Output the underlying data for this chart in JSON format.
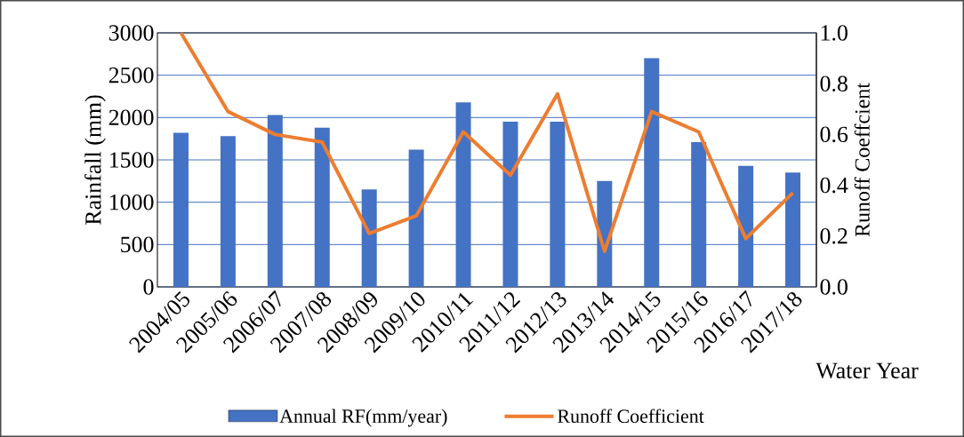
{
  "chart_data": {
    "type": "bar",
    "categories": [
      "2004/05",
      "2005/06",
      "2006/07",
      "2007/08",
      "2008/09",
      "2009/10",
      "2010/11",
      "2011/12",
      "2012/13",
      "2013/14",
      "2014/15",
      "2015/16",
      "2016/17",
      "2017/18"
    ],
    "series": [
      {
        "name": "Annual RF(mm/year)",
        "color": "#4472c4",
        "values": [
          1820,
          1780,
          2030,
          1880,
          1150,
          1620,
          2180,
          1950,
          1950,
          1250,
          2700,
          1710,
          1430,
          1350
        ]
      },
      {
        "name": "Runoff Coefficient",
        "type": "line",
        "axis": "y2",
        "color": "#ed7d31",
        "values": [
          1.0,
          0.69,
          0.6,
          0.57,
          0.21,
          0.28,
          0.61,
          0.44,
          0.76,
          0.14,
          0.69,
          0.61,
          0.19,
          0.37
        ]
      }
    ],
    "xlabel": "Water Year",
    "ylabel": "Rainfall (mm)",
    "y2label": "Runoff Coeffcient",
    "ylim": [
      0,
      3000
    ],
    "yticks": [
      0,
      500,
      1000,
      1500,
      2000,
      2500,
      3000
    ],
    "y2lim": [
      0,
      1
    ],
    "y2ticks": [
      {
        "value": 0,
        "label": "0.0"
      },
      {
        "value": 0.2,
        "label": "0.2"
      },
      {
        "value": 0.4,
        "label": "0.4"
      },
      {
        "value": 0.6,
        "label": "0.6"
      },
      {
        "value": 0.8,
        "label": "0.8"
      },
      {
        "value": 1,
        "label": "1.0"
      }
    ],
    "grid": "y",
    "legend": "bottom"
  }
}
